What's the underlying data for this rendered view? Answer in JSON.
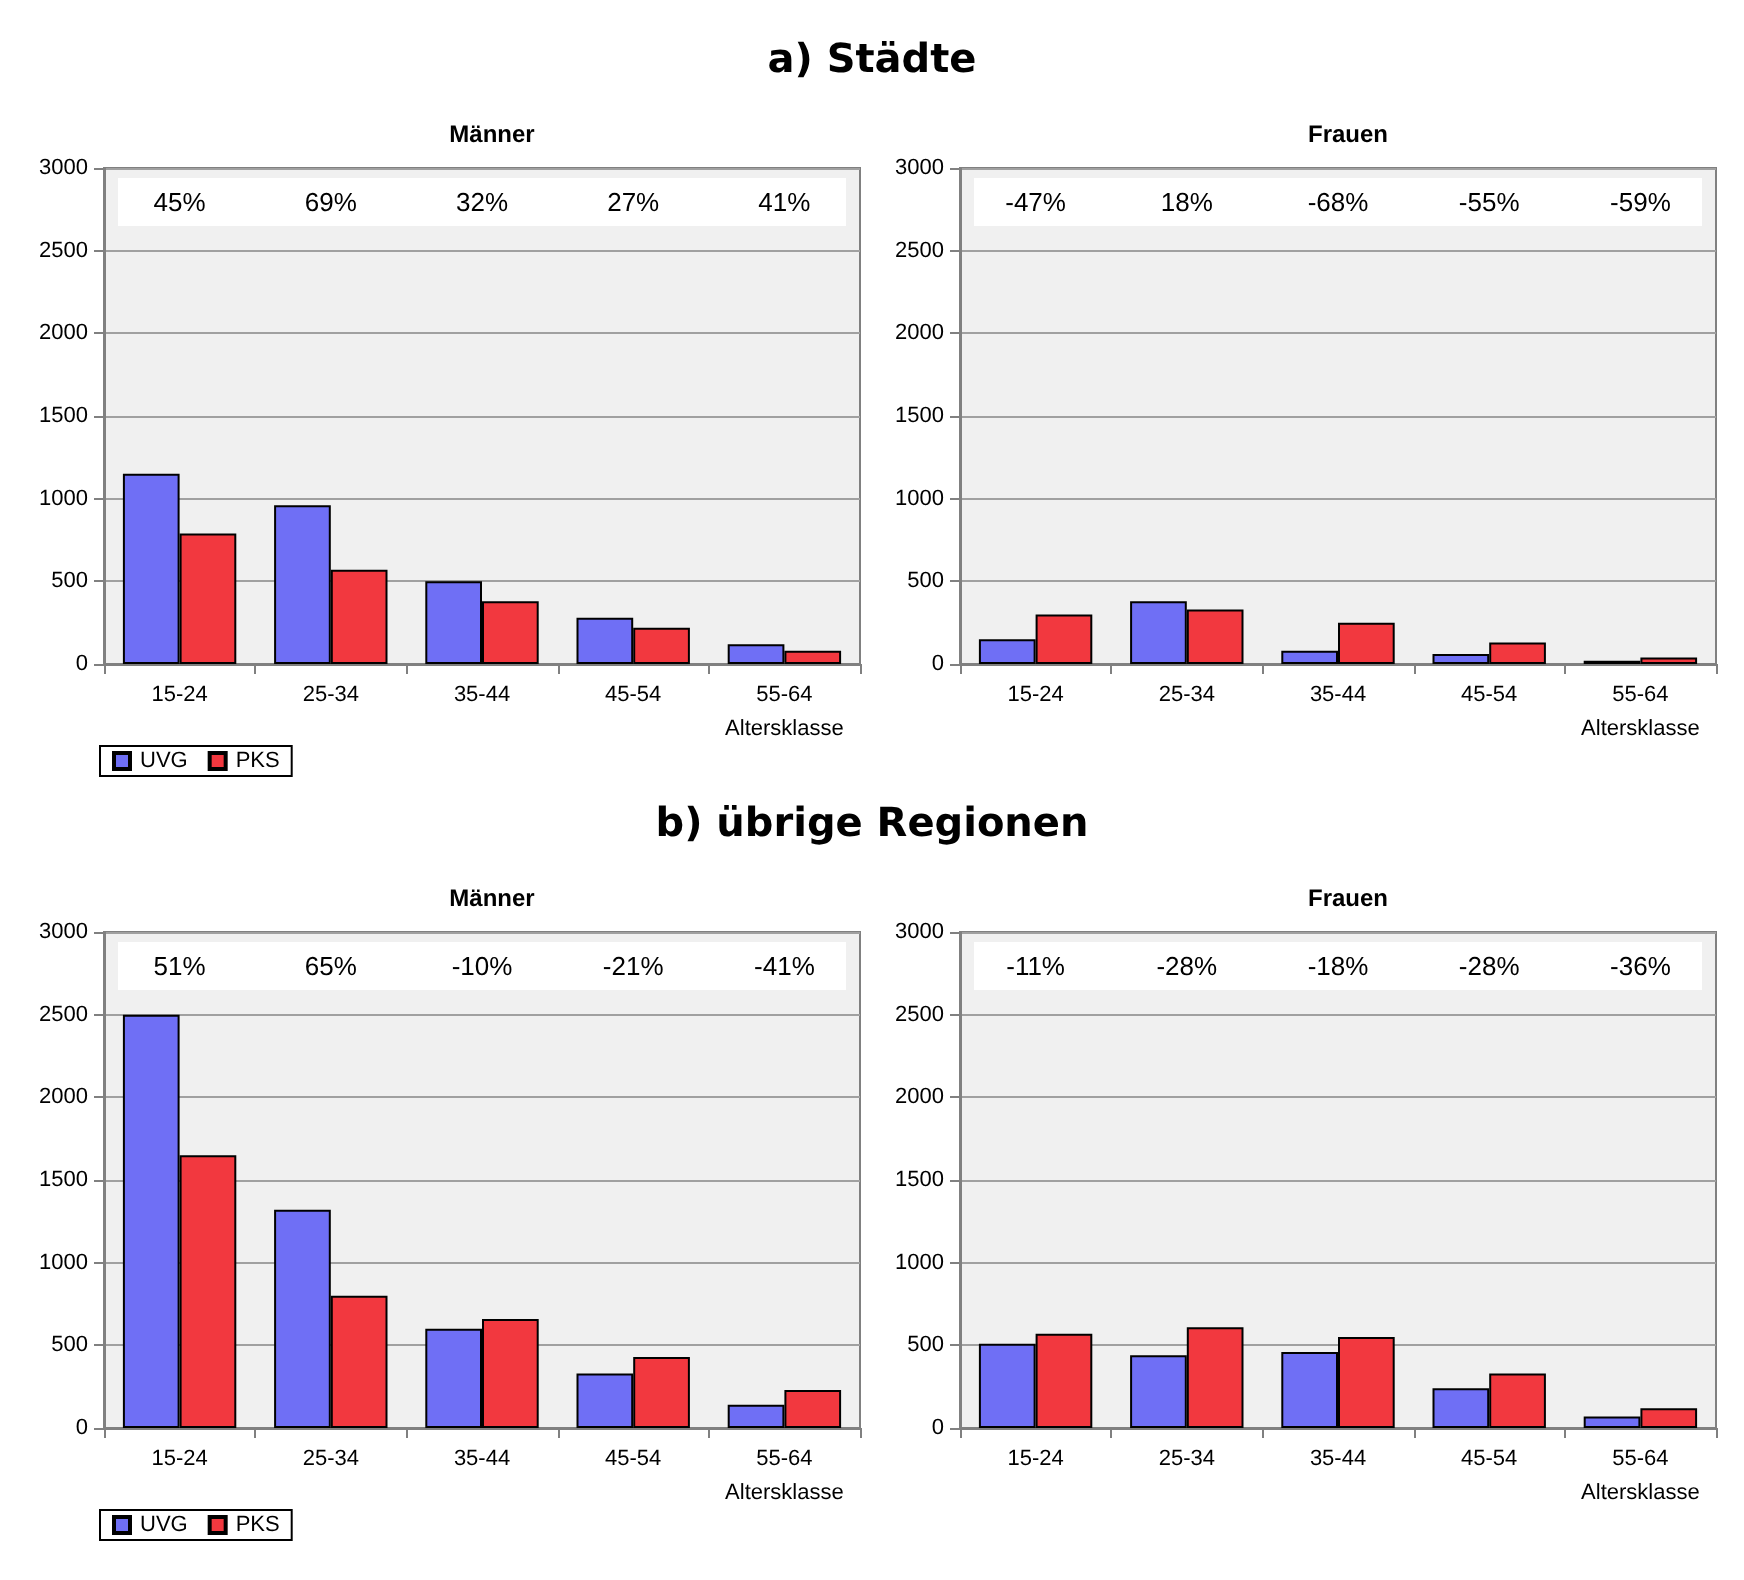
{
  "chart_data": [
    {
      "type": "bar",
      "subtitle": "a) Städte",
      "title": "Männer",
      "xlabel": "Altersklasse",
      "categories": [
        "15-24",
        "25-34",
        "35-44",
        "45-54",
        "55-64"
      ],
      "series": [
        {
          "name": "UVG",
          "color": "#6f6ff5",
          "values": [
            1150,
            960,
            500,
            280,
            120
          ]
        },
        {
          "name": "PKS",
          "color": "#f2383f",
          "values": [
            790,
            570,
            380,
            220,
            80
          ]
        }
      ],
      "annotations": [
        "45%",
        "69%",
        "32%",
        "27%",
        "41%"
      ],
      "ylim": [
        0,
        3000
      ],
      "yticks": [
        0,
        500,
        1000,
        1500,
        2000,
        2500,
        3000
      ],
      "grid": "y",
      "legend": "bottom left"
    },
    {
      "type": "bar",
      "title": "Frauen",
      "xlabel": "Altersklasse",
      "categories": [
        "15-24",
        "25-34",
        "35-44",
        "45-54",
        "55-64"
      ],
      "series": [
        {
          "color": "#6f6ff5",
          "values": [
            150,
            380,
            80,
            60,
            20
          ]
        },
        {
          "color": "#f2383f",
          "values": [
            300,
            330,
            250,
            130,
            40
          ]
        }
      ],
      "annotations": [
        "-47%",
        "18%",
        "-68%",
        "-55%",
        "-59%"
      ],
      "ylim": [
        0,
        3000
      ],
      "yticks": [
        0,
        500,
        1000,
        1500,
        2000,
        2500,
        3000
      ],
      "grid": "y"
    },
    {
      "type": "bar",
      "subtitle": "b) übrige Regionen",
      "title": "Männer",
      "xlabel": "Altersklasse",
      "categories": [
        "15-24",
        "25-34",
        "35-44",
        "45-54",
        "55-64"
      ],
      "series": [
        {
          "name": "UVG",
          "color": "#6f6ff5",
          "values": [
            2500,
            1320,
            600,
            330,
            140
          ]
        },
        {
          "name": "PKS",
          "color": "#f2383f",
          "values": [
            1650,
            800,
            660,
            430,
            230
          ]
        }
      ],
      "annotations": [
        "51%",
        "65%",
        "-10%",
        "-21%",
        "-41%"
      ],
      "ylim": [
        0,
        3000
      ],
      "yticks": [
        0,
        500,
        1000,
        1500,
        2000,
        2500,
        3000
      ],
      "grid": "y",
      "legend": "bottom left"
    },
    {
      "type": "bar",
      "title": "Frauen",
      "xlabel": "Altersklasse",
      "categories": [
        "15-24",
        "25-34",
        "35-44",
        "45-54",
        "55-64"
      ],
      "series": [
        {
          "color": "#6f6ff5",
          "values": [
            510,
            440,
            460,
            240,
            70
          ]
        },
        {
          "color": "#f2383f",
          "values": [
            570,
            610,
            550,
            330,
            120
          ]
        }
      ],
      "annotations": [
        "-11%",
        "-28%",
        "-18%",
        "-28%",
        "-36%"
      ],
      "ylim": [
        0,
        3000
      ],
      "yticks": [
        0,
        500,
        1000,
        1500,
        2000,
        2500,
        3000
      ],
      "grid": "y"
    }
  ]
}
